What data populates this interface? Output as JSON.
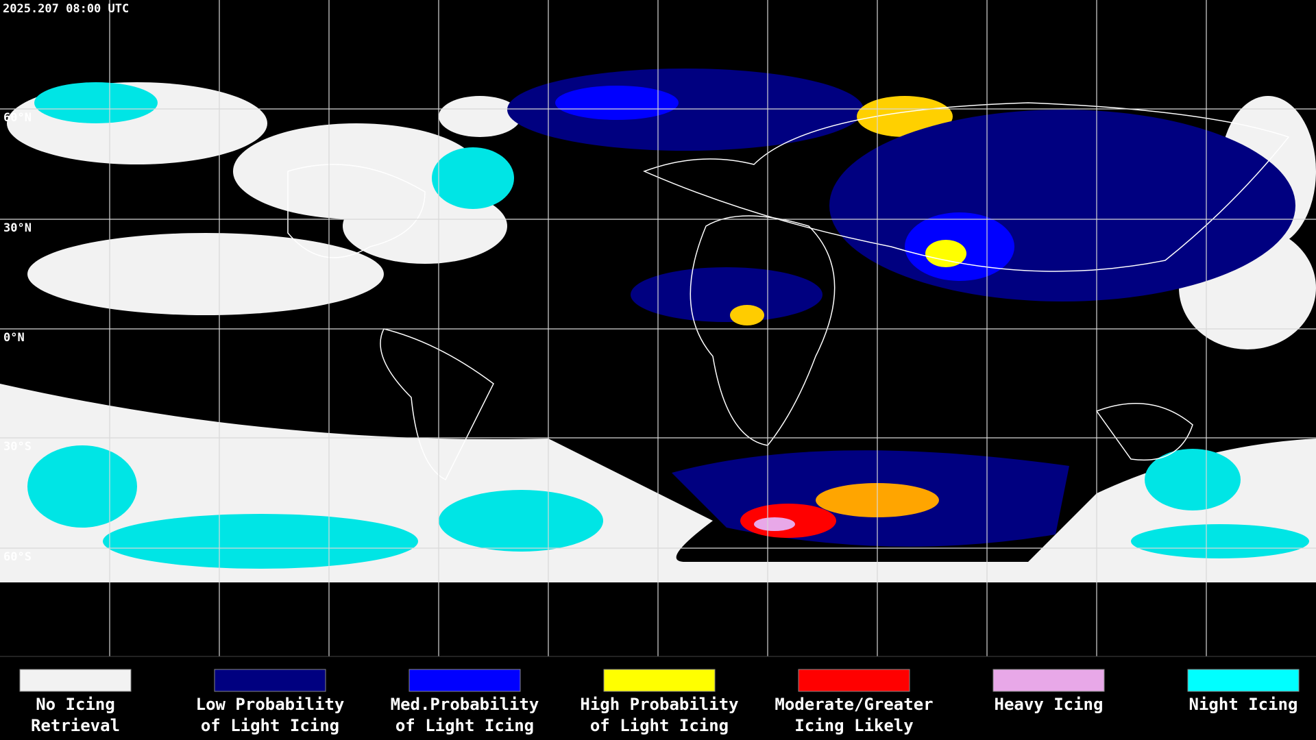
{
  "header": {
    "timestamp": "2025.207 08:00 UTC"
  },
  "map": {
    "lat_labels": [
      "60°N",
      "30°N",
      "0°N",
      "30°S",
      "60°S"
    ]
  },
  "legend": {
    "items": [
      {
        "color": "#f2f2f2",
        "lines": [
          "No Icing",
          "Retrieval"
        ]
      },
      {
        "color": "#000080",
        "lines": [
          "Low Probability",
          "of Light Icing"
        ]
      },
      {
        "color": "#0000ff",
        "lines": [
          "Med.Probability",
          "of Light Icing"
        ]
      },
      {
        "color": "#ffff00",
        "lines": [
          "High Probability",
          "of Light Icing"
        ]
      },
      {
        "color": "#ff0000",
        "lines": [
          "Moderate/Greater",
          "Icing Likely"
        ]
      },
      {
        "color": "#e8a8e8",
        "lines": [
          "Heavy Icing"
        ]
      },
      {
        "color": "#00ffff",
        "lines": [
          "Night Icing"
        ]
      }
    ]
  }
}
